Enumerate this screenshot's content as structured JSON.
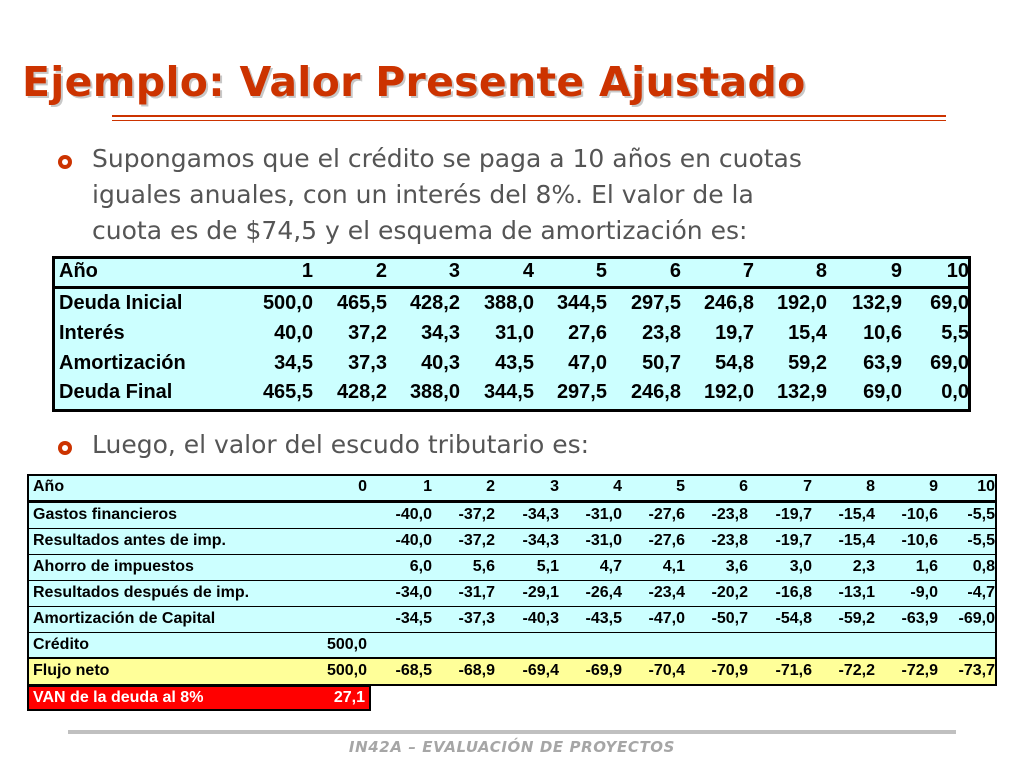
{
  "title": "Ejemplo: Valor Presente Ajustado",
  "bullets": [
    {
      "lines": [
        "Supongamos que el crédito se paga a 10 años en cuotas",
        "iguales anuales, con un interés del 8%. El valor de la",
        "cuota es de $74,5 y el esquema de amortización es:"
      ]
    },
    {
      "lines": [
        "Luego, el valor del escudo tributario es:"
      ]
    }
  ],
  "table1": {
    "header": {
      "label": "Año",
      "values": [
        "1",
        "2",
        "3",
        "4",
        "5",
        "6",
        "7",
        "8",
        "9",
        "10"
      ]
    },
    "rows": [
      {
        "label": "Deuda Inicial",
        "values": [
          "500,0",
          "465,5",
          "428,2",
          "388,0",
          "344,5",
          "297,5",
          "246,8",
          "192,0",
          "132,9",
          "69,0"
        ]
      },
      {
        "label": "Interés",
        "values": [
          "40,0",
          "37,2",
          "34,3",
          "31,0",
          "27,6",
          "23,8",
          "19,7",
          "15,4",
          "10,6",
          "5,5"
        ]
      },
      {
        "label": "Amortización",
        "values": [
          "34,5",
          "37,3",
          "40,3",
          "43,5",
          "47,0",
          "50,7",
          "54,8",
          "59,2",
          "63,9",
          "69,0"
        ]
      },
      {
        "label": "Deuda Final",
        "values": [
          "465,5",
          "428,2",
          "388,0",
          "344,5",
          "297,5",
          "246,8",
          "192,0",
          "132,9",
          "69,0",
          "0,0"
        ]
      }
    ]
  },
  "table2": {
    "header": {
      "label": "Año",
      "values": [
        "0",
        "1",
        "2",
        "3",
        "4",
        "5",
        "6",
        "7",
        "8",
        "9",
        "10"
      ]
    },
    "rows": [
      {
        "label": "Gastos financieros",
        "values": [
          "",
          "-40,0",
          "-37,2",
          "-34,3",
          "-31,0",
          "-27,6",
          "-23,8",
          "-19,7",
          "-15,4",
          "-10,6",
          "-5,5"
        ]
      },
      {
        "label": "Resultados antes de imp.",
        "values": [
          "",
          "-40,0",
          "-37,2",
          "-34,3",
          "-31,0",
          "-27,6",
          "-23,8",
          "-19,7",
          "-15,4",
          "-10,6",
          "-5,5"
        ]
      },
      {
        "label": "Ahorro de impuestos",
        "values": [
          "",
          "6,0",
          "5,6",
          "5,1",
          "4,7",
          "4,1",
          "3,6",
          "3,0",
          "2,3",
          "1,6",
          "0,8"
        ]
      },
      {
        "label": "Resultados después de imp.",
        "values": [
          "",
          "-34,0",
          "-31,7",
          "-29,1",
          "-26,4",
          "-23,4",
          "-20,2",
          "-16,8",
          "-13,1",
          "-9,0",
          "-4,7"
        ]
      },
      {
        "label": "Amortización de Capital",
        "values": [
          "",
          "-34,5",
          "-37,3",
          "-40,3",
          "-43,5",
          "-47,0",
          "-50,7",
          "-54,8",
          "-59,2",
          "-63,9",
          "-69,0"
        ]
      },
      {
        "label": "Crédito",
        "values": [
          "500,0",
          "",
          "",
          "",
          "",
          "",
          "",
          "",
          "",
          "",
          ""
        ]
      },
      {
        "label": "Flujo neto",
        "values": [
          "500,0",
          "-68,5",
          "-68,9",
          "-69,4",
          "-69,9",
          "-70,4",
          "-70,9",
          "-71,6",
          "-72,2",
          "-72,9",
          "-73,7"
        ]
      }
    ],
    "van": {
      "label": "VAN de la deuda al 8%",
      "value": "27,1"
    }
  },
  "footer": "IN42A – EVALUACIÓN DE PROYECTOS",
  "colors": {
    "title": "#cc3300",
    "table_bg": "#ccffff",
    "flujo_bg": "#ffff99",
    "van_bg": "#ff0000"
  }
}
